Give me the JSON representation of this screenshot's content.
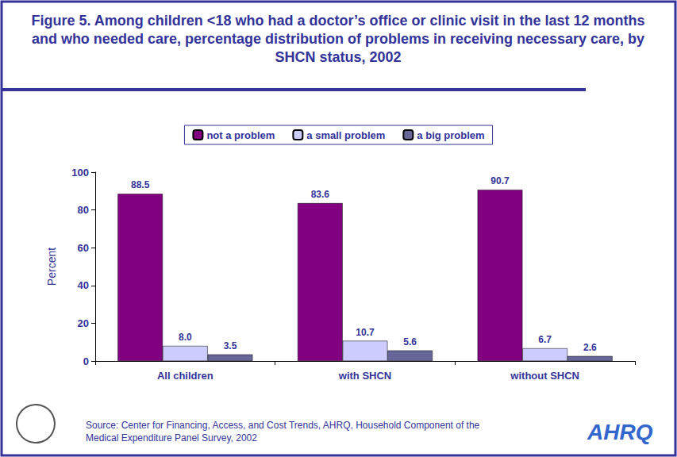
{
  "chart_data": {
    "type": "bar",
    "title": "Figure 5. Among children <18 who had a doctor’s office or clinic visit in the last 12 months and who needed care, percentage distribution of problems in receiving necessary care, by SHCN status, 2002",
    "y_label": "Percent",
    "categories": [
      "All children",
      "with SHCN",
      "without SHCN"
    ],
    "series": [
      {
        "name": "not a problem",
        "color": "#800080",
        "values": [
          88.5,
          83.6,
          90.7
        ],
        "value_labels": [
          "88.5",
          "83.6",
          "90.7"
        ]
      },
      {
        "name": "a small problem",
        "color": "#ccccff",
        "values": [
          8.0,
          10.7,
          6.7
        ],
        "value_labels": [
          "8.0",
          "10.7",
          "6.7"
        ]
      },
      {
        "name": "a big problem",
        "color": "#666699",
        "values": [
          3.5,
          5.6,
          2.6
        ],
        "value_labels": [
          "3.5",
          "5.6",
          "2.6"
        ]
      }
    ],
    "ylim": [
      0,
      100
    ],
    "yticks": [
      0,
      20,
      40,
      60,
      80,
      100
    ],
    "grid": false,
    "legend": "top",
    "data_labels": true,
    "source": "Source: Center for Financing, Access, and Cost Trends, AHRQ, Household Component of the Medical Expenditure Panel Survey, 2002",
    "logo_text": "AHRQ"
  }
}
